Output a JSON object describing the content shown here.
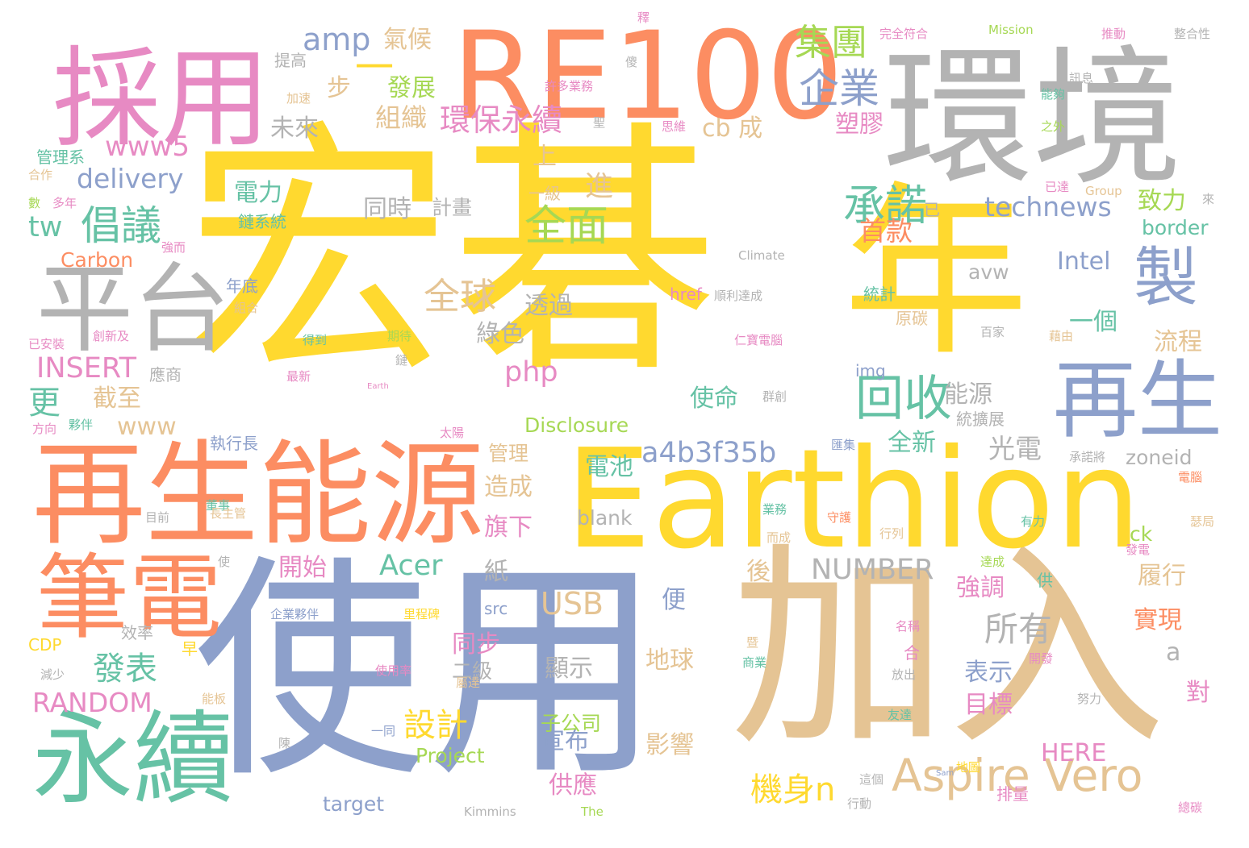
{
  "palette": {
    "yellow": "#ffd92f",
    "orange": "#fc8d62",
    "blue": "#8da0cb",
    "green": "#66c2a5",
    "pink": "#e78ac3",
    "lime": "#a6d854",
    "tan": "#e5c494",
    "gray": "#b3b3b3"
  },
  "words": [
    "宏碁",
    "年",
    "使用",
    "加入",
    "環境",
    "採用",
    "RE100",
    "Earthion",
    "再生能源",
    "平台",
    "永續",
    "筆電",
    "再生",
    "製",
    "Aspire Vero",
    "回收",
    "承諾",
    "倡議",
    "全面",
    "企業",
    "集團",
    "amp",
    "一",
    "www5",
    "delivery",
    "technews",
    "a4b3f35b",
    "環保永續",
    "全球",
    "INSERT",
    "php",
    "Acer",
    "USB",
    "NUMBER",
    "RANDOM",
    "發表",
    "機身n",
    "設計",
    "所有",
    "光電",
    "首款",
    "致力",
    "更",
    "tw",
    "border",
    "Carbon",
    "Intel",
    "塑膠",
    "cb 成",
    "組織",
    "未來",
    "發展",
    "氣候",
    "步",
    "電力",
    "同時",
    "計畫",
    "進",
    "上",
    "透過",
    "綠色",
    "一個",
    "流程",
    "截至",
    "www",
    "開始",
    "使命",
    "能源",
    "全新",
    "電池",
    "造成",
    "旗下",
    "後",
    "紙",
    "強調",
    "履行",
    "實現",
    "同步",
    "顯示",
    "便",
    "地球",
    "表示",
    "目標",
    "對",
    "宣布",
    "供應",
    "影響",
    "子公司",
    "target",
    "Project",
    "HERE",
    "a",
    "管理",
    "src",
    "二級",
    "img",
    "avw",
    "blank",
    "zoneid",
    "ck",
    "Disclosure",
    "href",
    "原碳",
    "統計",
    "提高",
    "加速",
    "管理系",
    "合作",
    "數",
    "多年",
    "年底",
    "鏈系統",
    "組合",
    "創新及",
    "已安裝",
    "得到",
    "期待",
    "最新",
    "鏈",
    "應商",
    "夥伴",
    "方向",
    "執行長",
    "董事",
    "目前",
    "長主管",
    "使",
    "企業夥伴",
    "效率",
    "早",
    "減少",
    "CDP",
    "能板",
    "陳",
    "一同",
    "Kimmins",
    "The",
    "里程碑",
    "使用率",
    "屬達",
    "太陽",
    "群創",
    "統擴展",
    "業務",
    "而成",
    "守護",
    "行列",
    "有力",
    "發電",
    "達成",
    "供",
    "名稱",
    "合",
    "放出",
    "商業",
    "努力",
    "友達",
    "Sam",
    "這個",
    "地圖",
    "排量",
    "行動",
    "總碳",
    "開發",
    "暨",
    "匯集",
    "承諾將",
    "電腦",
    "瑟局",
    "百家",
    "藉由",
    "已達",
    "Group",
    "來",
    "已",
    "Climate",
    "順利達成",
    "仁寶電腦",
    "Earth",
    "許多業務",
    "之外",
    "思維",
    "聖",
    "傻",
    "能夠",
    "訊息",
    "推動",
    "整合性",
    "Mission",
    "完全符合",
    "釋",
    "強而",
    "一級"
  ]
}
